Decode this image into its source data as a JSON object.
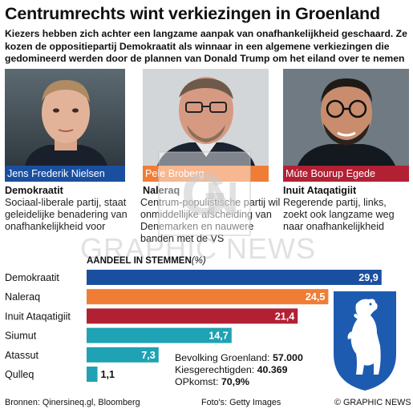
{
  "header": {
    "title": "Centrumrechts wint verkiezingen in Groenland",
    "subtitle": "Kiezers hebben zich achter een langzame aanpak van onafhankelijkheid geschaard. Ze kozen de oppositiepartij Demokraatit als winnaar in een algemene verkiezingen die gedomineerd werden door de plannen van Donald Trump om het eiland over te nemen"
  },
  "candidates": [
    {
      "name": "Jens Frederik Nielsen",
      "party": "Demokraatit",
      "description": "Sociaal-liberale partij, staat geleidelijke benadering van onafhankelijkheid voor",
      "color": "#1a4fa0"
    },
    {
      "name": "Pele Broberg",
      "party": "Naleraq",
      "description": "Centrum-populistische partij wil onmiddellijke afscheiding van Denemarken en nauwere banden met de VS",
      "color": "#f07d36"
    },
    {
      "name": "Múte Bourup Egede",
      "party": "Inuit Ataqatigiit",
      "description": "Regerende partij, links, zoekt ook langzame weg naar onafhankelijkheid",
      "color": "#b22034"
    }
  ],
  "chart_data": {
    "type": "bar",
    "orientation": "horizontal",
    "title": "AANDEEL IN STEMMEN",
    "unit": "(%)",
    "categories": [
      "Demokraatit",
      "Naleraq",
      "Inuit Ataqatigiit",
      "Siumut",
      "Atassut",
      "Qulleq"
    ],
    "values": [
      29.9,
      24.5,
      21.4,
      14.7,
      7.3,
      1.1
    ],
    "value_labels": [
      "29,9",
      "24,5",
      "21,4",
      "14,7",
      "7,3",
      "1,1"
    ],
    "colors": [
      "#1a4fa0",
      "#f07d36",
      "#b22034",
      "#1ea2b4",
      "#1ea2b4",
      "#1ea2b4"
    ],
    "xlim": [
      0,
      30
    ],
    "grid": false,
    "legend": "none"
  },
  "facts": [
    {
      "label": "Bevolking Groenland:",
      "value": "57.000"
    },
    {
      "label": "Kiesgerechtigden:",
      "value": "40.369"
    },
    {
      "label": "OPkomst:",
      "value": "70,9%"
    }
  ],
  "watermark": "GRAPHIC NEWS",
  "footer": {
    "sources": "Bronnen: Qinersineq.gl, Bloomberg",
    "photos": "Foto's: Getty Images",
    "credit": "© GRAPHIC NEWS"
  },
  "colors": {
    "accent_blue": "#1a4fa0",
    "accent_orange": "#f07d36",
    "accent_red": "#b22034",
    "accent_teal": "#1ea2b4",
    "crest_blue": "#1d5bb0"
  }
}
